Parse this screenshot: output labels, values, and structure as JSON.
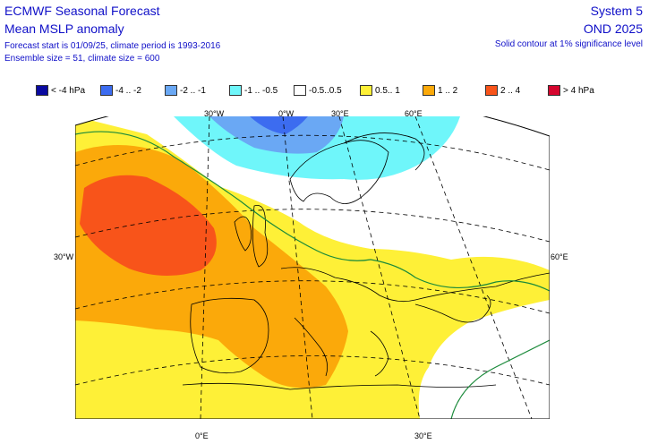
{
  "header": {
    "title": "ECMWF Seasonal Forecast",
    "subtitle": "Mean MSLP anomaly",
    "forecast_info": "Forecast start is 01/09/25, climate period is 1993-2016",
    "ensemble_info": "Ensemble size = 51, climate size = 600",
    "system": "System 5",
    "season": "OND 2025",
    "significance_note": "Solid contour at 1% significance level"
  },
  "legend": [
    {
      "label": "< -4 hPa",
      "color": "#0a0aa0"
    },
    {
      "label": "-4 .. -2",
      "color": "#3c6cf0"
    },
    {
      "label": "-2 .. -1",
      "color": "#6aa8f4"
    },
    {
      "label": "-1 .. -0.5",
      "color": "#6ff6fa"
    },
    {
      "label": "-0.5..0.5",
      "color": "#ffffff"
    },
    {
      "label": "0.5.. 1",
      "color": "#fef037"
    },
    {
      "label": "1 .. 2",
      "color": "#fba90a"
    },
    {
      "label": "2 .. 4",
      "color": "#f8541a"
    },
    {
      "label": "> 4 hPa",
      "color": "#d5062e"
    }
  ],
  "axes": {
    "top_ticks": [
      "30°W",
      "0°W",
      "30°E",
      "60°E"
    ],
    "bottom_ticks": [
      "0°E",
      "30°E"
    ],
    "left_tick": "30°W",
    "right_tick": "60°E"
  },
  "map": {
    "projection": "polar stereographic (sector)",
    "region": "Europe / North Atlantic"
  }
}
